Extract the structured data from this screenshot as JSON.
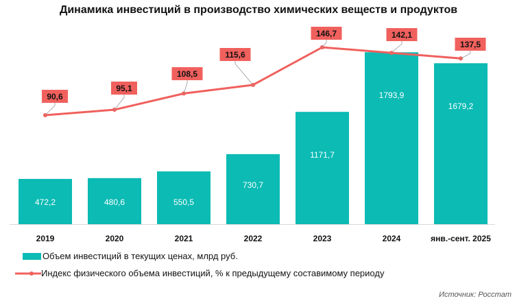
{
  "chart_data": {
    "type": "bar+line",
    "title": "Динамика инвестиций в производство химических веществ и продуктов",
    "categories": [
      "2019",
      "2020",
      "2021",
      "2022",
      "2023",
      "2024",
      "янв.-сент. 2025"
    ],
    "series": [
      {
        "name": "Объем инвестиций в текущих ценах, млрд руб.",
        "type": "bar",
        "color": "#0bbbb4",
        "values": [
          472.2,
          480.6,
          550.5,
          730.7,
          1171.7,
          1793.9,
          1679.2
        ],
        "labels": [
          "472,2",
          "480,6",
          "550,5",
          "730,7",
          "1171,7",
          "1793,9",
          "1679,2"
        ]
      },
      {
        "name": "Индекс физического объема инвестиций, % к предыдущему составимому периоду",
        "type": "line",
        "color": "#f0605d",
        "values": [
          90.6,
          95.1,
          108.5,
          115.6,
          146.7,
          142.1,
          137.5
        ],
        "labels": [
          "90,6",
          "95,1",
          "108,5",
          "115,6",
          "146,7",
          "142,1",
          "137,5"
        ]
      }
    ],
    "legend": "bottom-left",
    "grid": false
  },
  "source": "Источник: Росстат"
}
